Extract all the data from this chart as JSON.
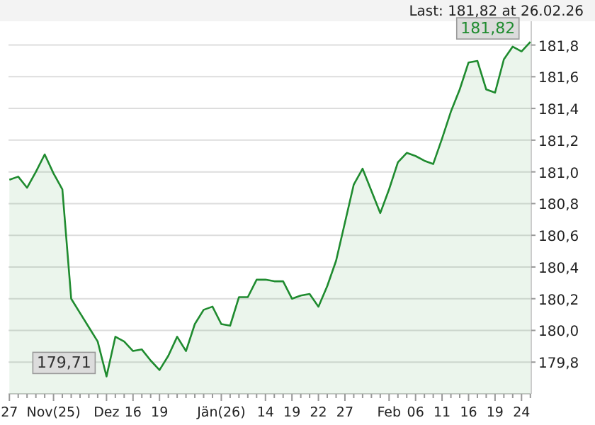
{
  "chart_data": {
    "type": "area",
    "title": "Last: 181,82 at 26.02.26",
    "categories": [
      "27",
      null,
      null,
      null,
      null,
      "Nov(25)",
      null,
      null,
      null,
      null,
      null,
      "Dez",
      null,
      null,
      "16",
      null,
      null,
      "19",
      null,
      null,
      null,
      null,
      null,
      null,
      "Jän(26)",
      null,
      null,
      null,
      null,
      "14",
      null,
      null,
      "19",
      null,
      null,
      "22",
      null,
      null,
      "27",
      null,
      null,
      null,
      null,
      "Feb",
      null,
      null,
      "06",
      null,
      null,
      "11",
      null,
      null,
      "16",
      null,
      null,
      "19",
      null,
      null,
      "24",
      null
    ],
    "series": [
      {
        "color": "#1f8b2f",
        "values": [
          180.95,
          180.97,
          180.9,
          181.0,
          181.11,
          180.99,
          180.89,
          180.2,
          180.11,
          180.02,
          179.93,
          179.71,
          179.96,
          179.93,
          179.87,
          179.88,
          179.81,
          179.75,
          179.84,
          179.96,
          179.87,
          180.04,
          180.13,
          180.15,
          180.04,
          180.03,
          180.21,
          180.21,
          180.32,
          180.32,
          180.31,
          180.31,
          180.2,
          180.22,
          180.23,
          180.15,
          180.28,
          180.44,
          180.68,
          180.92,
          181.02,
          180.88,
          180.74,
          180.89,
          181.06,
          181.12,
          181.1,
          181.07,
          181.05,
          181.21,
          181.38,
          181.52,
          181.69,
          181.7,
          181.52,
          181.5,
          181.71,
          181.79,
          181.76,
          181.82
        ]
      }
    ],
    "ylim": [
      179.6,
      181.95
    ],
    "yticks": [
      {
        "value": 179.8,
        "label": "179,8"
      },
      {
        "value": 180.0,
        "label": "180,0"
      },
      {
        "value": 180.2,
        "label": "180,2"
      },
      {
        "value": 180.4,
        "label": "180,4"
      },
      {
        "value": 180.6,
        "label": "180,6"
      },
      {
        "value": 180.8,
        "label": "180,8"
      },
      {
        "value": 181.0,
        "label": "181,0"
      },
      {
        "value": 181.2,
        "label": "181,2"
      },
      {
        "value": 181.4,
        "label": "181,4"
      },
      {
        "value": 181.6,
        "label": "181,6"
      },
      {
        "value": 181.8,
        "label": "181,8"
      }
    ],
    "annotations": [
      "181,82",
      "179,71"
    ],
    "grid": "y",
    "marker": "none",
    "line_style": "solid"
  }
}
